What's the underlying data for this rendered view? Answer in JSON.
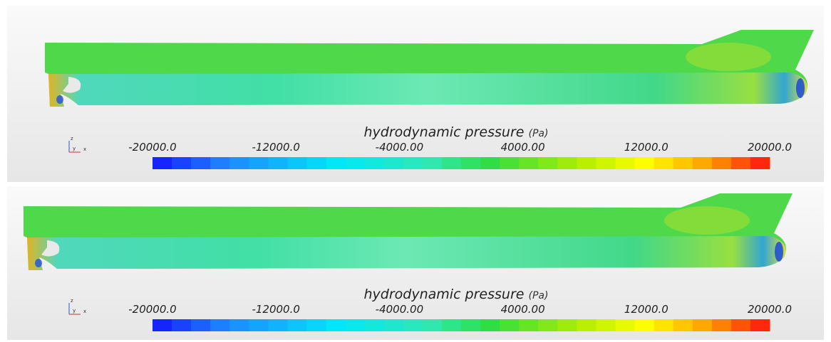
{
  "panels": [
    {
      "colorbar": {
        "title": "hydrodynamic pressure",
        "unit": "(Pa)",
        "range": [
          -20000,
          20000
        ],
        "ticks": [
          {
            "value": -20000,
            "label": "-20000.0"
          },
          {
            "value": -12000,
            "label": "-12000.0"
          },
          {
            "value": -4000,
            "label": "-4000.00"
          },
          {
            "value": 4000,
            "label": "4000.00"
          },
          {
            "value": 12000,
            "label": "12000.0"
          },
          {
            "value": 20000,
            "label": "20000.0"
          }
        ]
      },
      "axes": {
        "z": "z",
        "y": "y",
        "x": "x"
      }
    },
    {
      "colorbar": {
        "title": "hydrodynamic pressure",
        "unit": "(Pa)",
        "range": [
          -20000,
          20000
        ],
        "ticks": [
          {
            "value": -20000,
            "label": "-20000.0"
          },
          {
            "value": -12000,
            "label": "-12000.0"
          },
          {
            "value": -4000,
            "label": "-4000.00"
          },
          {
            "value": 4000,
            "label": "4000.00"
          },
          {
            "value": 12000,
            "label": "12000.0"
          },
          {
            "value": 20000,
            "label": "20000.0"
          }
        ]
      },
      "axes": {
        "z": "z",
        "y": "y",
        "x": "x"
      }
    }
  ]
}
